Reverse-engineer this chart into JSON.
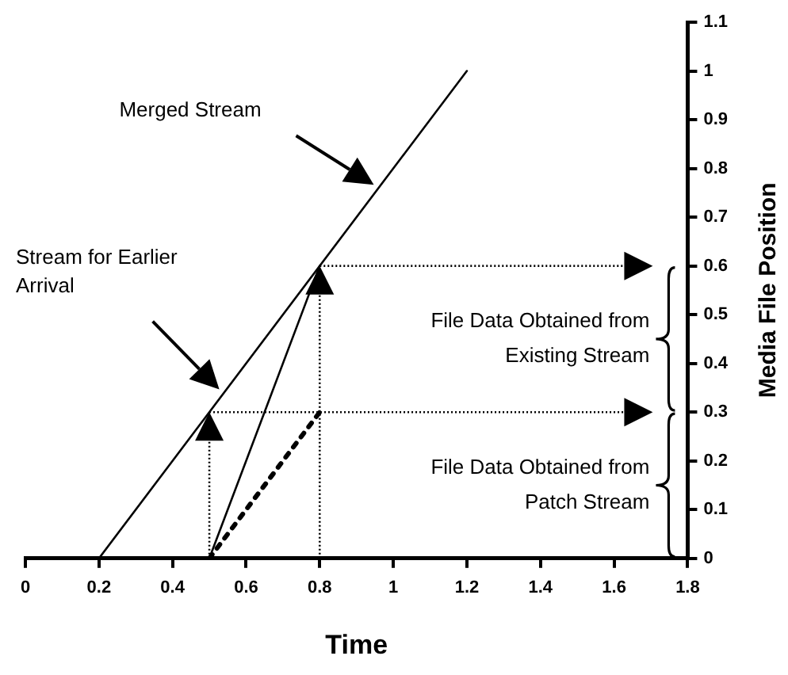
{
  "chart_data": {
    "type": "line",
    "xlabel": "Time",
    "ylabel": "Media File Position",
    "xlim": [
      0,
      1.8
    ],
    "xticks": [
      0,
      0.2,
      0.4,
      0.6,
      0.8,
      1,
      1.2,
      1.4,
      1.6,
      1.8
    ],
    "ylim": [
      0,
      1.1
    ],
    "yticks": [
      0,
      0.1,
      0.2,
      0.3,
      0.4,
      0.5,
      0.6,
      0.7,
      0.8,
      0.9,
      1,
      1.1
    ],
    "grid": false,
    "legend": false,
    "marker": "none",
    "series": [
      {
        "color": "#000000",
        "x": [
          0.2,
          1.2
        ],
        "values": [
          0,
          1
        ],
        "line_style": "solid"
      },
      {
        "color": "#000000",
        "x": [
          0.5,
          0.8
        ],
        "values": [
          0,
          0.6
        ],
        "line_style": "solid"
      },
      {
        "color": "#000000",
        "x": [
          0.5,
          0.8
        ],
        "values": [
          0,
          0.3
        ],
        "line_style": "dashed"
      }
    ],
    "annotations": [
      "Merged Stream",
      "Stream for Earlier Arrival",
      "File Data Obtained from Existing Stream",
      "File Data Obtained from Patch Stream"
    ]
  }
}
